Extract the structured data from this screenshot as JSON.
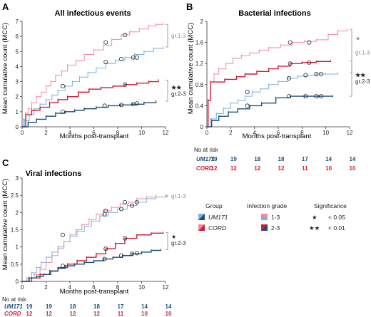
{
  "colors": {
    "um171_1_3": "#7fb0dc",
    "um171_2_3": "#1f4f7a",
    "cord_1_3": "#f08aa0",
    "cord_2_3": "#cc1f3a",
    "bracket": "#8c8c8c",
    "text": "#222222"
  },
  "legend": {
    "group_title": "Group",
    "groups": [
      "UM171",
      "CORD"
    ],
    "grade_title": "Infection grade",
    "grades": [
      "1-3",
      "2-3"
    ],
    "sig_title": "Significance",
    "sig_symbols": [
      "★",
      "★★"
    ],
    "sig_values": [
      "< 0.05",
      "< 0.01"
    ]
  },
  "risk_table": {
    "header": "No at risk",
    "UM171": [
      "19",
      "19",
      "18",
      "18",
      "17",
      "14",
      "14"
    ],
    "CORD": [
      "12",
      "12",
      "12",
      "12",
      "11",
      "10",
      "10"
    ]
  },
  "chart_data": [
    {
      "panel": "A",
      "type": "line",
      "step": true,
      "title": "All infectious events",
      "xlabel": "Months post-transplant",
      "ylabel": "Mean cumulative count (MCC)",
      "xlim": [
        0,
        12
      ],
      "ylim": [
        0,
        7
      ],
      "xticks": [
        0,
        2,
        4,
        6,
        8,
        10,
        12
      ],
      "yticks": [
        0,
        1,
        2,
        3,
        4,
        5,
        6,
        7
      ],
      "series": [
        {
          "group": "CORD",
          "grade": "1-3",
          "x": [
            0,
            0.1,
            0.3,
            0.5,
            0.8,
            1.2,
            1.6,
            2.0,
            2.4,
            2.8,
            3.3,
            3.8,
            4.5,
            5.2,
            6.0,
            6.8,
            7.5,
            8.3,
            9.0,
            9.8,
            10.6,
            11.2,
            11.8
          ],
          "y": [
            0,
            0.5,
            0.9,
            1.2,
            1.6,
            2.0,
            2.3,
            2.7,
            3.0,
            3.4,
            3.7,
            4.1,
            4.4,
            4.8,
            5.1,
            5.4,
            5.8,
            6.1,
            6.3,
            6.5,
            6.7,
            6.8,
            6.85
          ],
          "censor": [
            [
              7.0,
              5.6
            ],
            [
              8.6,
              6.1
            ]
          ]
        },
        {
          "group": "UM171",
          "grade": "1-3",
          "x": [
            0,
            0.2,
            0.6,
            1.0,
            1.5,
            2.0,
            2.5,
            3.0,
            3.6,
            4.2,
            4.8,
            5.5,
            6.2,
            7.0,
            7.8,
            8.6,
            9.4,
            10.2,
            11.0,
            11.8
          ],
          "y": [
            0,
            0.4,
            0.8,
            1.2,
            1.5,
            1.8,
            2.1,
            2.4,
            2.7,
            3.0,
            3.3,
            3.6,
            3.9,
            4.2,
            4.4,
            4.6,
            4.8,
            5.0,
            5.2,
            5.3
          ],
          "censor": [
            [
              7.0,
              4.3
            ],
            [
              8.3,
              4.5
            ],
            [
              9.3,
              4.6
            ],
            [
              9.6,
              4.6
            ]
          ]
        },
        {
          "group": "CORD",
          "grade": "2-3",
          "x": [
            0,
            0.3,
            0.8,
            1.5,
            2.3,
            3.0,
            3.8,
            4.7,
            5.6,
            6.6,
            7.6,
            8.6,
            9.6,
            10.6,
            11.4
          ],
          "y": [
            0,
            0.8,
            1.1,
            1.3,
            1.6,
            1.8,
            2.0,
            2.3,
            2.5,
            2.6,
            2.7,
            2.8,
            2.9,
            3.0,
            3.1
          ],
          "censor": [
            [
              3.4,
              2.7
            ],
            [
              8.6,
              2.8
            ]
          ]
        },
        {
          "group": "UM171",
          "grade": "2-3",
          "x": [
            0,
            0.5,
            1.2,
            2.0,
            2.8,
            3.6,
            4.4,
            5.2,
            6.2,
            7.2,
            8.2,
            9.2,
            10.2,
            11.2
          ],
          "y": [
            0,
            0.3,
            0.5,
            0.7,
            0.9,
            1.0,
            1.1,
            1.2,
            1.3,
            1.4,
            1.45,
            1.5,
            1.6,
            1.7
          ],
          "censor": [
            [
              3.4,
              1.0
            ],
            [
              6.9,
              1.4
            ],
            [
              8.3,
              1.45
            ],
            [
              9.3,
              1.5
            ],
            [
              9.6,
              1.55
            ]
          ]
        }
      ],
      "annotations": [
        {
          "text": "gr.1-3",
          "group": "grade 1-3"
        },
        {
          "text": "★★",
          "group": "grade 2-3"
        },
        {
          "text": "gr.2-3",
          "group": "grade 2-3"
        }
      ]
    },
    {
      "panel": "B",
      "type": "line",
      "step": true,
      "title": "Bacterial infections",
      "xlabel": "Months post-transplant",
      "ylabel": "Mean cumulative count (MCC)",
      "xlim": [
        0,
        12
      ],
      "ylim": [
        0,
        2
      ],
      "xticks": [
        0,
        2,
        4,
        6,
        8,
        10,
        12
      ],
      "yticks": [
        0,
        0.4,
        0.8,
        1.2,
        1.6,
        2
      ],
      "ytick_labels": [
        "0",
        "0.4",
        "0.8",
        "1.2",
        "1.6",
        "2"
      ],
      "series": [
        {
          "group": "CORD",
          "grade": "1-3",
          "x": [
            0,
            0.1,
            0.3,
            0.6,
            1.0,
            1.6,
            2.2,
            2.9,
            3.6,
            4.4,
            5.2,
            6.2,
            7.2,
            8.2,
            9.2,
            10.2,
            11.0,
            11.8
          ],
          "y": [
            0,
            0.5,
            0.85,
            1.0,
            1.1,
            1.2,
            1.3,
            1.35,
            1.4,
            1.45,
            1.5,
            1.55,
            1.6,
            1.62,
            1.65,
            1.75,
            1.82,
            1.85
          ],
          "censor": [
            [
              7.0,
              1.6
            ],
            [
              8.6,
              1.6
            ]
          ]
        },
        {
          "group": "CORD",
          "grade": "2-3",
          "x": [
            0,
            0.1,
            0.3,
            1.5,
            2.5,
            3.2,
            4.2,
            5.2,
            6.0,
            7.0,
            8.0,
            9.2,
            10.4
          ],
          "y": [
            0,
            0.5,
            0.85,
            0.9,
            0.95,
            1.0,
            1.05,
            1.1,
            1.15,
            1.2,
            1.22,
            1.24,
            1.25
          ],
          "censor": [
            [
              7.0,
              1.2
            ],
            [
              8.6,
              1.22
            ]
          ]
        },
        {
          "group": "UM171",
          "grade": "1-3",
          "x": [
            0,
            0.3,
            0.8,
            1.4,
            2.0,
            2.6,
            3.2,
            3.8,
            4.5,
            5.2,
            6.0,
            6.8,
            7.6,
            8.4,
            9.2,
            10.0,
            11.0
          ],
          "y": [
            0,
            0.15,
            0.25,
            0.35,
            0.45,
            0.5,
            0.58,
            0.66,
            0.72,
            0.8,
            0.86,
            0.92,
            0.96,
            0.98,
            1.0,
            1.0,
            1.02
          ],
          "censor": [
            [
              3.4,
              0.66
            ],
            [
              6.9,
              0.92
            ],
            [
              8.3,
              0.98
            ],
            [
              9.2,
              1.0
            ],
            [
              9.6,
              1.0
            ]
          ]
        },
        {
          "group": "UM171",
          "grade": "2-3",
          "x": [
            0,
            0.4,
            1.0,
            1.8,
            2.6,
            3.6,
            4.6,
            5.8,
            7.0,
            8.2,
            9.4,
            10.6
          ],
          "y": [
            0,
            0.12,
            0.2,
            0.28,
            0.34,
            0.4,
            0.45,
            0.55,
            0.58,
            0.58,
            0.58,
            0.58
          ],
          "censor": [
            [
              3.4,
              0.4
            ],
            [
              6.9,
              0.58
            ],
            [
              8.3,
              0.58
            ],
            [
              9.2,
              0.58
            ],
            [
              9.6,
              0.58
            ]
          ]
        }
      ],
      "annotations": [
        {
          "text": "★",
          "group": "grade 1-3"
        },
        {
          "text": "gr.1-3",
          "group": "grade 1-3"
        },
        {
          "text": "★★",
          "group": "grade 2-3"
        },
        {
          "text": "gr.2-3",
          "group": "grade 2-3"
        }
      ]
    },
    {
      "panel": "C",
      "type": "line",
      "step": true,
      "title": "Viral infections",
      "xlabel": "Months post-transplant",
      "ylabel": "Mean cumulative count (MCC)",
      "xlim": [
        0,
        12
      ],
      "ylim": [
        0,
        3
      ],
      "xticks": [
        0,
        2,
        4,
        6,
        8,
        10,
        12
      ],
      "yticks": [
        0,
        0.5,
        1,
        1.5,
        2,
        2.5,
        3
      ],
      "ytick_labels": [
        "0",
        "0.5",
        "1",
        "1.5",
        "2",
        "2.5",
        "3"
      ],
      "series": [
        {
          "group": "CORD",
          "grade": "1-3",
          "x": [
            0,
            0.5,
            1.0,
            1.5,
            2.0,
            2.5,
            3.0,
            3.5,
            4.0,
            4.5,
            5.0,
            5.6,
            6.2,
            6.8,
            7.5,
            8.2,
            8.9,
            9.6,
            10.4,
            11.2
          ],
          "y": [
            0,
            0.1,
            0.2,
            0.35,
            0.55,
            0.75,
            0.95,
            1.15,
            1.35,
            1.5,
            1.65,
            1.8,
            1.95,
            2.05,
            2.15,
            2.25,
            2.3,
            2.4,
            2.45,
            2.5
          ],
          "censor": [
            [
              7.0,
              2.05
            ],
            [
              8.6,
              2.3
            ]
          ]
        },
        {
          "group": "UM171",
          "grade": "1-3",
          "x": [
            0,
            0.4,
            0.8,
            1.2,
            1.6,
            2.0,
            2.5,
            3.0,
            3.5,
            4.0,
            4.6,
            5.2,
            5.8,
            6.5,
            7.2,
            8.0,
            8.8,
            9.6,
            10.4,
            11.2,
            12.0
          ],
          "y": [
            0,
            0.1,
            0.25,
            0.4,
            0.55,
            0.7,
            0.85,
            1.0,
            1.15,
            1.3,
            1.45,
            1.6,
            1.75,
            1.9,
            2.0,
            2.1,
            2.2,
            2.3,
            2.4,
            2.45,
            2.5
          ],
          "censor": [
            [
              3.4,
              1.35
            ],
            [
              6.9,
              1.95
            ],
            [
              8.3,
              2.1
            ],
            [
              9.2,
              2.2
            ],
            [
              9.6,
              2.3
            ]
          ]
        },
        {
          "group": "CORD",
          "grade": "2-3",
          "x": [
            0,
            0.8,
            1.5,
            2.3,
            3.0,
            3.8,
            4.6,
            5.4,
            6.2,
            7.0,
            7.8,
            8.6,
            9.6,
            10.8,
            11.8
          ],
          "y": [
            0,
            0.1,
            0.2,
            0.3,
            0.4,
            0.5,
            0.6,
            0.7,
            0.8,
            0.95,
            1.1,
            1.25,
            1.35,
            1.4,
            1.42
          ],
          "censor": [
            [
              7.0,
              0.95
            ],
            [
              8.6,
              1.25
            ]
          ]
        },
        {
          "group": "UM171",
          "grade": "2-3",
          "x": [
            0,
            0.6,
            1.2,
            1.8,
            2.4,
            3.0,
            3.6,
            4.4,
            5.2,
            6.0,
            6.8,
            7.6,
            8.4,
            9.2,
            10.0,
            10.8,
            11.6
          ],
          "y": [
            0,
            0.1,
            0.15,
            0.2,
            0.3,
            0.38,
            0.45,
            0.5,
            0.55,
            0.6,
            0.65,
            0.7,
            0.75,
            0.8,
            0.85,
            0.9,
            0.92
          ],
          "censor": [
            [
              3.4,
              0.45
            ],
            [
              6.9,
              0.65
            ],
            [
              8.3,
              0.75
            ],
            [
              9.2,
              0.8
            ],
            [
              9.6,
              0.82
            ]
          ]
        }
      ],
      "annotations": [
        {
          "text": "gr.1-3",
          "group": "grade 1-3"
        },
        {
          "text": "★",
          "group": "grade 2-3"
        },
        {
          "text": "gr.2-3",
          "group": "grade 2-3"
        }
      ]
    }
  ]
}
